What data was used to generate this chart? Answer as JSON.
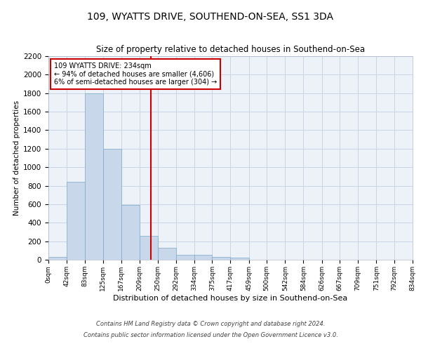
{
  "title": "109, WYATTS DRIVE, SOUTHEND-ON-SEA, SS1 3DA",
  "subtitle": "Size of property relative to detached houses in Southend-on-Sea",
  "xlabel": "Distribution of detached houses by size in Southend-on-Sea",
  "ylabel": "Number of detached properties",
  "footer_line1": "Contains HM Land Registry data © Crown copyright and database right 2024.",
  "footer_line2": "Contains public sector information licensed under the Open Government Licence v3.0.",
  "annotation_line1": "109 WYATTS DRIVE: 234sqm",
  "annotation_line2": "← 94% of detached houses are smaller (4,606)",
  "annotation_line3": "6% of semi-detached houses are larger (304) →",
  "property_line_x": 234,
  "bin_edges": [
    0,
    42,
    83,
    125,
    167,
    209,
    250,
    292,
    334,
    375,
    417,
    459,
    500,
    542,
    584,
    626,
    667,
    709,
    751,
    792,
    834
  ],
  "bin_labels": [
    "0sqm",
    "42sqm",
    "83sqm",
    "125sqm",
    "167sqm",
    "209sqm",
    "250sqm",
    "292sqm",
    "334sqm",
    "375sqm",
    "417sqm",
    "459sqm",
    "500sqm",
    "542sqm",
    "584sqm",
    "626sqm",
    "667sqm",
    "709sqm",
    "751sqm",
    "792sqm",
    "834sqm"
  ],
  "bar_heights": [
    30,
    840,
    1800,
    1200,
    590,
    255,
    130,
    50,
    50,
    30,
    20,
    0,
    0,
    0,
    0,
    0,
    0,
    0,
    0,
    0
  ],
  "bar_color": "#c8d8ea",
  "bar_edge_color": "#7aaac8",
  "grid_color": "#c8d4e4",
  "bg_color": "#edf2f8",
  "red_line_color": "#cc0000",
  "ylim": [
    0,
    2200
  ],
  "yticks": [
    0,
    200,
    400,
    600,
    800,
    1000,
    1200,
    1400,
    1600,
    1800,
    2000,
    2200
  ]
}
